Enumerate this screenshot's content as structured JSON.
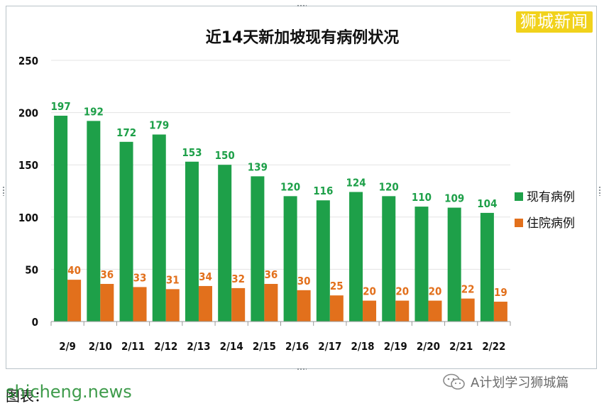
{
  "brand": {
    "text": "狮城新闻"
  },
  "footer": {
    "caption": "图表：",
    "watermark": "shicheng.news",
    "account": "A计划学习狮城篇",
    "account_icon": "wechat-icon"
  },
  "colors": {
    "existing": "#1ea049",
    "hospitalized": "#e2701c",
    "brand": "#f1d21c"
  },
  "chart_data": {
    "type": "bar",
    "title": "近14天新加坡现有病例状况",
    "categories": [
      "2/9",
      "2/10",
      "2/11",
      "2/12",
      "2/13",
      "2/14",
      "2/15",
      "2/16",
      "2/17",
      "2/18",
      "2/19",
      "2/20",
      "2/21",
      "2/22"
    ],
    "series": [
      {
        "name": "现有病例",
        "color": "#1ea049",
        "values": [
          197,
          192,
          172,
          179,
          153,
          150,
          139,
          120,
          116,
          124,
          120,
          110,
          109,
          104
        ]
      },
      {
        "name": "住院病例",
        "color": "#e2701c",
        "values": [
          40,
          36,
          33,
          31,
          34,
          32,
          36,
          30,
          25,
          20,
          20,
          20,
          22,
          19
        ]
      }
    ],
    "yticks": [
      0,
      50,
      100,
      150,
      200,
      250
    ],
    "ylim": [
      0,
      250
    ],
    "grid": true,
    "legend": "right",
    "data_labels": true
  }
}
